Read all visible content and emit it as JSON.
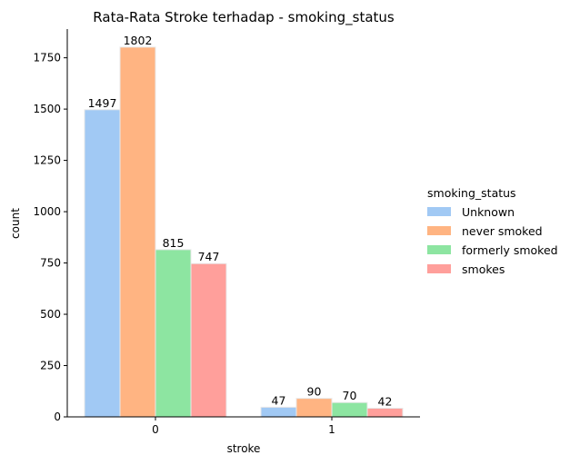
{
  "chart_data": {
    "type": "bar",
    "title": "Rata-Rata Stroke terhadap - smoking_status",
    "xlabel": "stroke",
    "ylabel": "count",
    "categories": [
      "0",
      "1"
    ],
    "ylim": [
      0,
      1890
    ],
    "yticks": [
      0,
      250,
      500,
      750,
      1000,
      1250,
      1500,
      1750
    ],
    "grid": false,
    "legend": {
      "title": "smoking_status",
      "placement": "right"
    },
    "series": [
      {
        "name": "Unknown",
        "values": [
          1497,
          47
        ],
        "color": "#a1c9f4"
      },
      {
        "name": "never smoked",
        "values": [
          1802,
          90
        ],
        "color": "#ffb482"
      },
      {
        "name": "formerly smoked",
        "values": [
          815,
          70
        ],
        "color": "#8de5a1"
      },
      {
        "name": "smokes",
        "values": [
          747,
          42
        ],
        "color": "#ff9f9b"
      }
    ]
  }
}
